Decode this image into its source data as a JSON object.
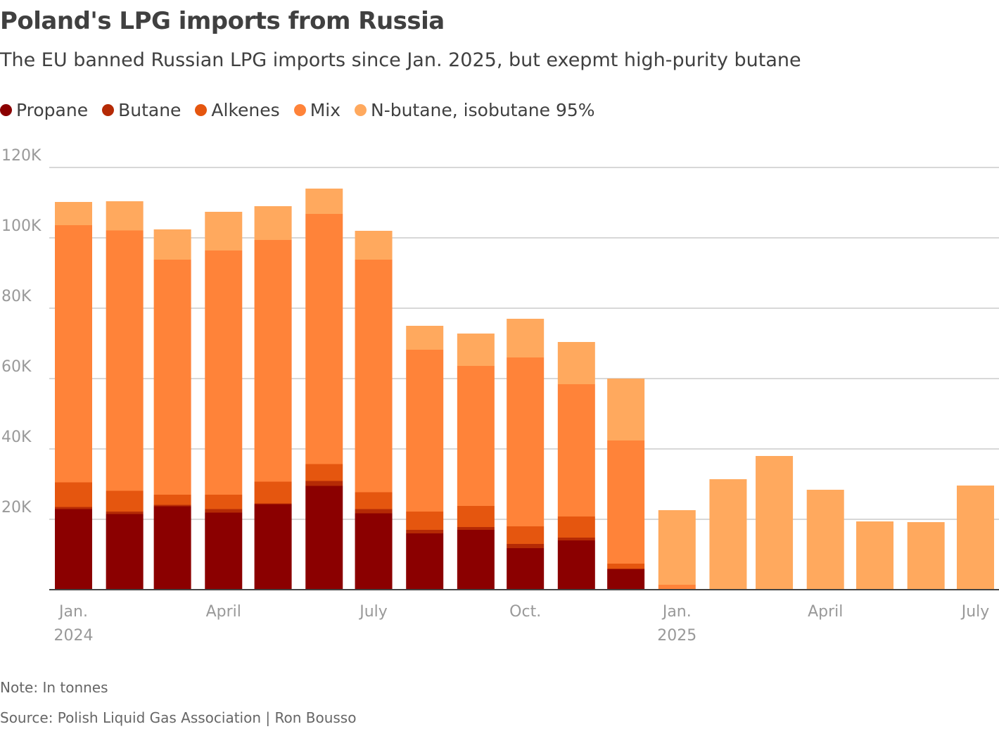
{
  "title": "Poland's LPG imports from Russia",
  "subtitle": "The EU banned Russian LPG imports since Jan. 2025, but exepmt high-purity butane",
  "note": "Note: In tonnes",
  "source": "Source: Polish Liquid Gas Association | Ron Bousso",
  "chart_data": {
    "type": "bar",
    "stacked": true,
    "title": "Poland's LPG imports from Russia",
    "ylim": [
      0,
      120000
    ],
    "yticks": [
      20000,
      40000,
      60000,
      80000,
      100000,
      120000
    ],
    "ytick_labels": [
      "20K",
      "40K",
      "60K",
      "80K",
      "100K",
      "120K"
    ],
    "grid": true,
    "legend_position": "top-left",
    "categories": [
      "2024-01",
      "2024-02",
      "2024-03",
      "2024-04",
      "2024-05",
      "2024-06",
      "2024-07",
      "2024-08",
      "2024-09",
      "2024-10",
      "2024-11",
      "2024-12",
      "2025-01",
      "2025-02",
      "2025-03",
      "2025-04",
      "2025-05",
      "2025-06",
      "2025-07"
    ],
    "xticks": [
      {
        "date": "2024-01",
        "label": "Jan.",
        "sub": "2024"
      },
      {
        "date": "2024-04",
        "label": "April",
        "sub": ""
      },
      {
        "date": "2024-07",
        "label": "July",
        "sub": ""
      },
      {
        "date": "2024-10",
        "label": "Oct.",
        "sub": ""
      },
      {
        "date": "2025-01",
        "label": "Jan.",
        "sub": "2025"
      },
      {
        "date": "2025-04",
        "label": "April",
        "sub": ""
      },
      {
        "date": "2025-07",
        "label": "July",
        "sub": ""
      }
    ],
    "series": [
      {
        "name": "Propane",
        "color": "#8b0000",
        "values": [
          22900,
          21500,
          23700,
          21900,
          24300,
          29500,
          21700,
          16000,
          17000,
          11800,
          14000,
          5800,
          0,
          0,
          0,
          0,
          0,
          0,
          0
        ]
      },
      {
        "name": "Butane",
        "color": "#b52a05",
        "values": [
          600,
          700,
          400,
          1000,
          200,
          1400,
          1200,
          1000,
          800,
          1200,
          800,
          200,
          0,
          0,
          0,
          0,
          0,
          0,
          0
        ]
      },
      {
        "name": "Alkenes",
        "color": "#e5560f",
        "values": [
          7000,
          5900,
          2900,
          4100,
          6200,
          4800,
          4800,
          5200,
          6000,
          5000,
          6000,
          1400,
          0,
          0,
          0,
          0,
          0,
          0,
          0
        ]
      },
      {
        "name": "Mix",
        "color": "#ff8339",
        "values": [
          73100,
          74000,
          66800,
          69400,
          68700,
          71100,
          66100,
          46000,
          39800,
          48000,
          37600,
          35000,
          1400,
          0,
          0,
          0,
          0,
          0,
          0
        ]
      },
      {
        "name": "N-butane, isobutane 95%",
        "color": "#ffa95e",
        "values": [
          6600,
          8300,
          8600,
          11000,
          9600,
          7200,
          8200,
          6800,
          9200,
          11000,
          12000,
          17600,
          21200,
          31400,
          38000,
          28400,
          19400,
          19200,
          29600
        ]
      }
    ]
  }
}
